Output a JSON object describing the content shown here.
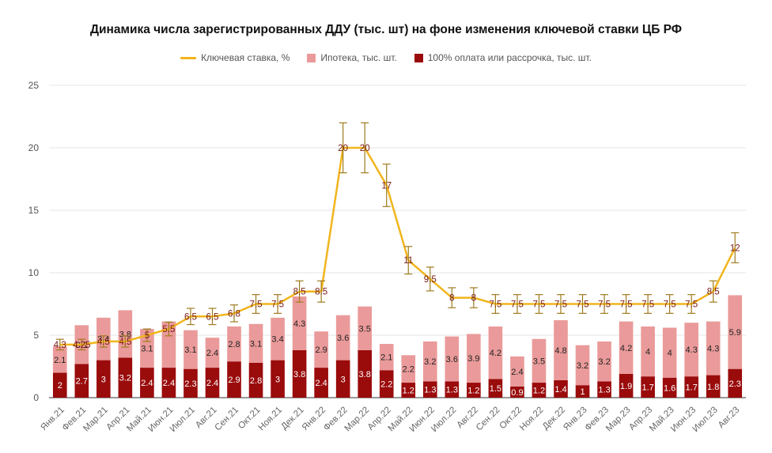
{
  "colors": {
    "mortgage": "#ea9a9a",
    "full_payment": "#9a0b0c",
    "key_rate": "#f1b51c",
    "error_bar": "#a07b1e",
    "grid": "#e5e5e5"
  },
  "chart_data": {
    "type": "bar",
    "stacked": true,
    "title": "Динамика числа зарегистрированных ДДУ (тыс. шт) на фоне изменения ключевой ставки ЦБ РФ",
    "legend_position": "top",
    "grid": true,
    "ylim": [
      0,
      25
    ],
    "yticks": [
      "0",
      "5",
      "10",
      "15",
      "20",
      "25"
    ],
    "categories": [
      "Янв.21",
      "Фев.21",
      "Мар.21",
      "Апр.21",
      "Май.21",
      "Июн.21",
      "Июл.21",
      "Авг.21",
      "Сен.21",
      "Окт.21",
      "Ноя.21",
      "Дек.21",
      "Янв.22",
      "Фев.22",
      "Мар.22",
      "Апр.22",
      "Май.22",
      "Июн.22",
      "Июл.22",
      "Авг.22",
      "Сен.22",
      "Окт.22",
      "Ноя.22",
      "Дек.22",
      "Янв.23",
      "Фев.23",
      "Мар.23",
      "Апр.23",
      "Май.23",
      "Июн.23",
      "Июл.23",
      "Авг.23"
    ],
    "series": [
      {
        "name": "100% оплата или рассрочка, тыс. шт.",
        "type": "bar",
        "values": [
          2,
          2.7,
          3,
          3.2,
          2.4,
          2.4,
          2.3,
          2.4,
          2.9,
          2.8,
          3,
          3.8,
          2.4,
          3,
          3.8,
          2.2,
          1.2,
          1.3,
          1.3,
          1.2,
          1.5,
          0.9,
          1.2,
          1.4,
          1,
          1.3,
          1.9,
          1.7,
          1.6,
          1.7,
          1.8,
          2.3
        ],
        "labels": [
          "2",
          "2.7",
          "3",
          "3.2",
          "2.4",
          "2.4",
          "2.3",
          "2.4",
          "2.9",
          "2.8",
          "3",
          "3.8",
          "2.4",
          "3",
          "3.8",
          "2.2",
          "1.2",
          "1.3",
          "1.3",
          "1.2",
          "1.5",
          "0.9",
          "1.2",
          "1.4",
          "1",
          "1.3",
          "1.9",
          "1.7",
          "1.6",
          "1.7",
          "1.8",
          "2.3"
        ]
      },
      {
        "name": "Ипотека, тыс. шт.",
        "type": "bar",
        "values": [
          2.1,
          3.1,
          3.4,
          3.8,
          3.1,
          3.7,
          3.1,
          2.4,
          2.8,
          3.1,
          3.4,
          4.3,
          2.9,
          3.6,
          3.5,
          2.1,
          2.2,
          3.2,
          3.6,
          3.9,
          4.2,
          2.4,
          3.5,
          4.8,
          3.2,
          3.2,
          4.2,
          4,
          4,
          4.3,
          4.3,
          5.9
        ],
        "labels": [
          "2.1",
          "3.1",
          "3.4",
          "3.8",
          "3.1",
          "",
          "3.1",
          "2.4",
          "2.8",
          "3.1",
          "3.4",
          "4.3",
          "2.9",
          "3.6",
          "3.5",
          "2.1",
          "2.2",
          "3.2",
          "3.6",
          "3.9",
          "4.2",
          "2.4",
          "3.5",
          "4.8",
          "3.2",
          "3.2",
          "4.2",
          "4",
          "4",
          "4.3",
          "4.3",
          "5.9"
        ]
      },
      {
        "name": "Ключевая ставка, %",
        "type": "line",
        "values": [
          4.25,
          4.25,
          4.5,
          4.5,
          5,
          5.5,
          6.5,
          6.5,
          6.75,
          7.5,
          7.5,
          8.5,
          8.5,
          20,
          20,
          17,
          11,
          9.5,
          8,
          8,
          7.5,
          7.5,
          7.5,
          7.5,
          7.5,
          7.5,
          7.5,
          7.5,
          7.5,
          7.5,
          8.5,
          12
        ],
        "labels": [
          "4.3",
          "4.25",
          "4.5",
          "4.5",
          "5",
          "5.5",
          "6.5",
          "6.5",
          "6.8",
          "7.5",
          "7.5",
          "8.5",
          "8.5",
          "20",
          "20",
          "17",
          "11",
          "9.5",
          "8",
          "8",
          "7.5",
          "7.5",
          "7.5",
          "7.5",
          "7.5",
          "7.5",
          "7.5",
          "7.5",
          "7.5",
          "7.5",
          "8.5",
          "12"
        ],
        "error_bar_fraction": 0.1
      }
    ]
  }
}
